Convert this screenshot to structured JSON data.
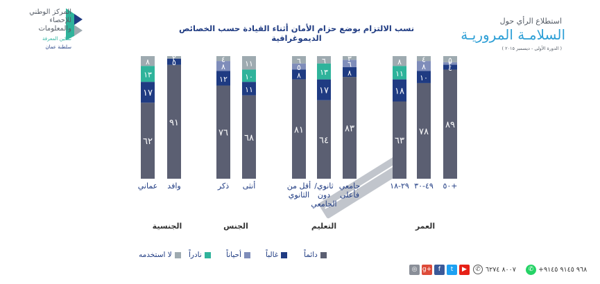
{
  "header": {
    "survey_label": "استطلاع الرأي حول",
    "survey_title": "السلامـة المروريـة",
    "survey_period": "( الدورة الأولى - ديسمبر ٢٠١٥ )",
    "logo_lines": [
      "المركز الوطني",
      "للإحصاء",
      "والمعلومات"
    ],
    "logo_tagline": "تمكين المعرفة",
    "logo_country": "سلطنة عمان"
  },
  "chart_data": {
    "type": "bar",
    "stacked": true,
    "title": "نسب الالتزام بوضع حزام الأمان أثناء القيادة حسب الخصائص الديموغرافية",
    "categories": [
      "+٥٠",
      "٤٩-٣٠",
      "٢٩-١٨",
      "جامعي فأعلى",
      "ثانوي/ دون الجامعي",
      "أقل من الثانوي",
      "أنثى",
      "ذكر",
      "وافد",
      "عماني"
    ],
    "groups": [
      {
        "label": "العمر",
        "categories": [
          "+٥٠",
          "٤٩-٣٠",
          "٢٩-١٨"
        ]
      },
      {
        "label": "التعليم",
        "categories": [
          "جامعي فأعلى",
          "ثانوي/ دون الجامعي",
          "أقل من الثانوي"
        ]
      },
      {
        "label": "الجنس",
        "categories": [
          "أنثى",
          "ذكر"
        ]
      },
      {
        "label": "الجنسية",
        "categories": [
          "وافد",
          "عماني"
        ]
      }
    ],
    "series": [
      {
        "name": "دائماً",
        "color": "#5b5f72",
        "values": [
          89,
          78,
          63,
          83,
          64,
          81,
          68,
          76,
          91,
          62
        ]
      },
      {
        "name": "غالباً",
        "color": "#1f3b82",
        "values": [
          4,
          10,
          18,
          8,
          17,
          8,
          11,
          12,
          5,
          17
        ]
      },
      {
        "name": "أحياناً",
        "color": "#7f8dba",
        "values": [
          2,
          8,
          0,
          6,
          0,
          5,
          0,
          8,
          0,
          0
        ]
      },
      {
        "name": "نادراً",
        "color": "#2fb39b",
        "values": [
          0,
          0,
          11,
          0,
          13,
          0,
          10,
          0,
          0,
          13
        ]
      },
      {
        "name": "لا استخدمه",
        "color": "#9eaab0",
        "values": [
          5,
          4,
          8,
          3,
          6,
          6,
          11,
          4,
          2,
          8
        ]
      }
    ],
    "value_labels": [
      [
        "٨٩",
        "٤",
        "٢",
        "",
        "٥"
      ],
      [
        "٧٨",
        "١٠",
        "٨",
        "",
        "٤"
      ],
      [
        "٦٣",
        "١٨",
        "",
        "١١",
        "٨"
      ],
      [
        "٨٣",
        "٨",
        "٦",
        "",
        "٣"
      ],
      [
        "٦٤",
        "١٧",
        "",
        "١٣",
        "٦"
      ],
      [
        "٨١",
        "٨",
        "٥",
        "",
        "٦"
      ],
      [
        "٦٨",
        "١١",
        "",
        "١٠",
        "١١"
      ],
      [
        "٧٦",
        "١٢",
        "٨",
        "",
        "٤"
      ],
      [
        "٩١",
        "٥",
        "",
        "",
        "٢"
      ],
      [
        "٦٢",
        "١٧",
        "",
        "١٣",
        "٨"
      ]
    ],
    "ylim": [
      0,
      100
    ],
    "grid": false,
    "legend_position": "bottom"
  },
  "footer": {
    "phone": "٨٠٠٧ ٦٢٧٤",
    "whatsapp": "+٩٦٨ ٩١٤٥ ٩١٤٥",
    "social_icons": [
      "instagram-icon",
      "google-plus-icon",
      "facebook-icon",
      "twitter-icon",
      "youtube-icon"
    ]
  },
  "colors": {
    "accent_blue": "#2d9fd6",
    "title_navy": "#1f3b82",
    "road_gray": "#b8bcc4"
  }
}
